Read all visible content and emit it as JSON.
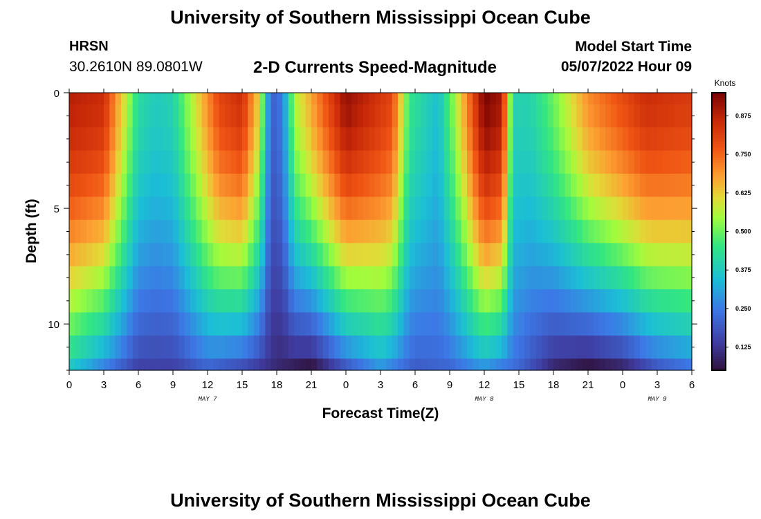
{
  "page": {
    "title_top": "University of Southern Mississippi Ocean Cube",
    "title_bottom": "University of Southern Mississippi Ocean Cube",
    "station": "HRSN",
    "coordinates": "30.2610N  89.0801W",
    "subtitle": "2-D Currents Speed-Magnitude",
    "model_start_label": "Model Start Time",
    "model_start_value": "05/07/2022 Hour 09"
  },
  "chart_data": {
    "type": "heatmap",
    "title": "2-D Currents Speed-Magnitude",
    "xlabel": "Forecast Time(Z)",
    "ylabel": "Depth (ft)",
    "x_range_hours": [
      0,
      54
    ],
    "x_ticks": [
      {
        "hour": 0,
        "label": "0"
      },
      {
        "hour": 3,
        "label": "3"
      },
      {
        "hour": 6,
        "label": "6"
      },
      {
        "hour": 9,
        "label": "9"
      },
      {
        "hour": 12,
        "label": "12"
      },
      {
        "hour": 15,
        "label": "15"
      },
      {
        "hour": 18,
        "label": "18"
      },
      {
        "hour": 21,
        "label": "21"
      },
      {
        "hour": 24,
        "label": "0"
      },
      {
        "hour": 27,
        "label": "3"
      },
      {
        "hour": 30,
        "label": "6"
      },
      {
        "hour": 33,
        "label": "9"
      },
      {
        "hour": 36,
        "label": "12"
      },
      {
        "hour": 39,
        "label": "15"
      },
      {
        "hour": 42,
        "label": "18"
      },
      {
        "hour": 45,
        "label": "21"
      },
      {
        "hour": 48,
        "label": "0"
      },
      {
        "hour": 51,
        "label": "3"
      },
      {
        "hour": 54,
        "label": "6"
      }
    ],
    "day_labels": [
      {
        "hour": 12,
        "label": "MAY 7"
      },
      {
        "hour": 36,
        "label": "MAY 8"
      },
      {
        "hour": 51,
        "label": "MAY 9"
      }
    ],
    "y_range_ft": [
      0,
      12
    ],
    "y_ticks": [
      {
        "depth": 0,
        "label": "0"
      },
      {
        "depth": 5,
        "label": "5"
      },
      {
        "depth": 10,
        "label": "10"
      }
    ],
    "colorbar": {
      "title": "Knots",
      "min": 0.05,
      "max": 0.95,
      "ticks": [
        {
          "value": 0.125,
          "label": "0.125"
        },
        {
          "value": 0.25,
          "label": "0.250"
        },
        {
          "value": 0.375,
          "label": "0.375"
        },
        {
          "value": 0.5,
          "label": "0.500"
        },
        {
          "value": 0.625,
          "label": "0.625"
        },
        {
          "value": 0.75,
          "label": "0.750"
        },
        {
          "value": 0.875,
          "label": "0.875"
        }
      ]
    },
    "depth_levels_ft": [
      0,
      1,
      2,
      3,
      4,
      5,
      6,
      7,
      8,
      9,
      10,
      11,
      12
    ],
    "surface_speed_knots": [
      {
        "hour": 0,
        "value": 0.88
      },
      {
        "hour": 3,
        "value": 0.85
      },
      {
        "hour": 6,
        "value": 0.42
      },
      {
        "hour": 7.5,
        "value": 0.38
      },
      {
        "hour": 9,
        "value": 0.4
      },
      {
        "hour": 13,
        "value": 0.8
      },
      {
        "hour": 15,
        "value": 0.85
      },
      {
        "hour": 16.5,
        "value": 0.6
      },
      {
        "hour": 17.5,
        "value": 0.2
      },
      {
        "hour": 18.5,
        "value": 0.25
      },
      {
        "hour": 19.5,
        "value": 0.55
      },
      {
        "hour": 24,
        "value": 0.92
      },
      {
        "hour": 28,
        "value": 0.8
      },
      {
        "hour": 29.5,
        "value": 0.45
      },
      {
        "hour": 32,
        "value": 0.35
      },
      {
        "hour": 33.5,
        "value": 0.55
      },
      {
        "hour": 36,
        "value": 0.95
      },
      {
        "hour": 37.5,
        "value": 0.9
      },
      {
        "hour": 38.5,
        "value": 0.4
      },
      {
        "hour": 40,
        "value": 0.4
      },
      {
        "hour": 42,
        "value": 0.5
      },
      {
        "hour": 45,
        "value": 0.7
      },
      {
        "hour": 50,
        "value": 0.85
      },
      {
        "hour": 54,
        "value": 0.82
      }
    ],
    "bottom_speed_knots": [
      {
        "hour": 0,
        "value": 0.38
      },
      {
        "hour": 3,
        "value": 0.27
      },
      {
        "hour": 6,
        "value": 0.15
      },
      {
        "hour": 9,
        "value": 0.15
      },
      {
        "hour": 12,
        "value": 0.22
      },
      {
        "hour": 15,
        "value": 0.18
      },
      {
        "hour": 18,
        "value": 0.1
      },
      {
        "hour": 21,
        "value": 0.06
      },
      {
        "hour": 24,
        "value": 0.2
      },
      {
        "hour": 27,
        "value": 0.3
      },
      {
        "hour": 30,
        "value": 0.2
      },
      {
        "hour": 33,
        "value": 0.22
      },
      {
        "hour": 36,
        "value": 0.3
      },
      {
        "hour": 39,
        "value": 0.22
      },
      {
        "hour": 42,
        "value": 0.1
      },
      {
        "hour": 45,
        "value": 0.06
      },
      {
        "hour": 48,
        "value": 0.1
      },
      {
        "hour": 51,
        "value": 0.2
      },
      {
        "hour": 54,
        "value": 0.25
      }
    ]
  }
}
